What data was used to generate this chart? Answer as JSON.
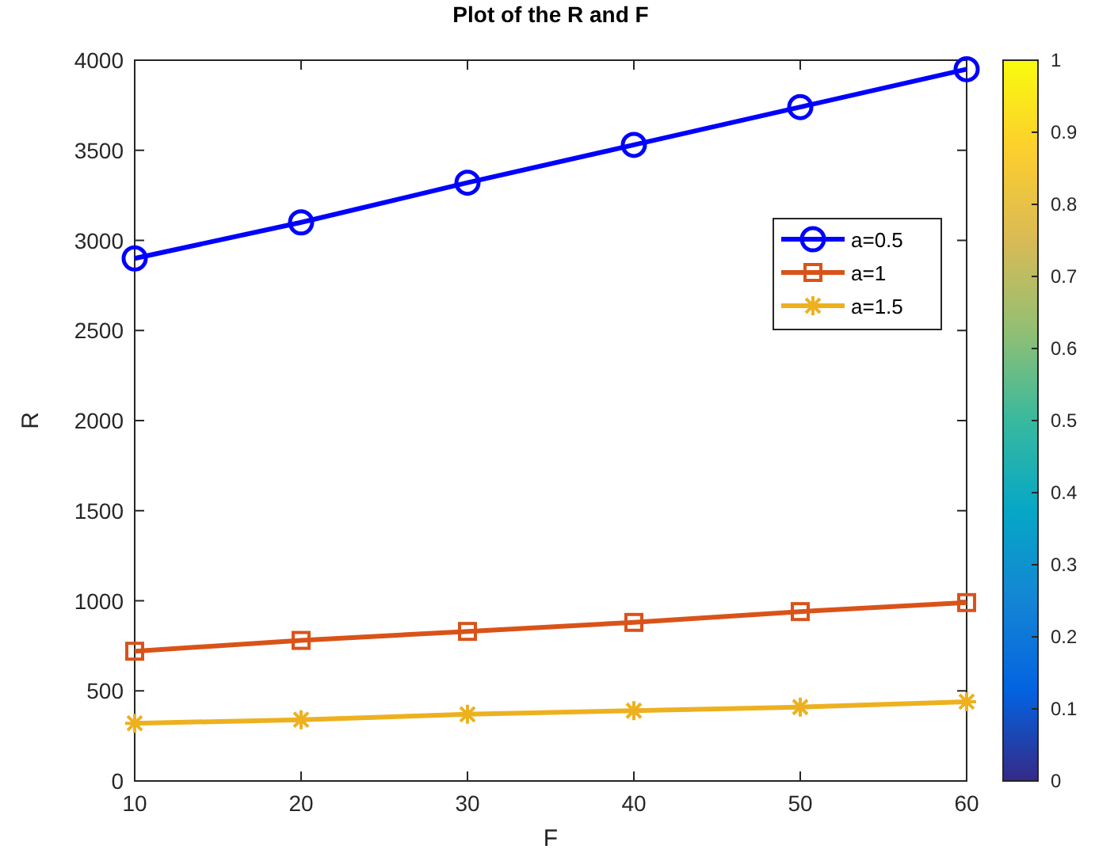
{
  "chart_data": {
    "type": "line",
    "title": "Plot of the R and F",
    "xlabel": "F",
    "ylabel": "R",
    "x": [
      10,
      20,
      30,
      40,
      50,
      60
    ],
    "series": [
      {
        "name": "a=0.5",
        "color": "#0000ff",
        "marker": "circle",
        "values": [
          2900,
          3100,
          3320,
          3530,
          3740,
          3950
        ]
      },
      {
        "name": "a=1",
        "color": "#d95319",
        "marker": "square",
        "values": [
          720,
          780,
          830,
          880,
          940,
          990
        ]
      },
      {
        "name": "a=1.5",
        "color": "#edb120",
        "marker": "cross",
        "values": [
          320,
          340,
          370,
          390,
          410,
          440
        ]
      }
    ],
    "xlim": [
      10,
      60
    ],
    "xticks": [
      10,
      20,
      30,
      40,
      50,
      60
    ],
    "ylim": [
      0,
      4000
    ],
    "yticks": [
      0,
      500,
      1000,
      1500,
      2000,
      2500,
      3000,
      3500,
      4000
    ],
    "clim": [
      0,
      1
    ],
    "cticks": [
      0,
      0.1,
      0.2,
      0.3,
      0.4,
      0.5,
      0.6,
      0.7,
      0.8,
      0.9,
      1
    ],
    "legend": "top right",
    "grid": false,
    "line_style": "solid"
  }
}
